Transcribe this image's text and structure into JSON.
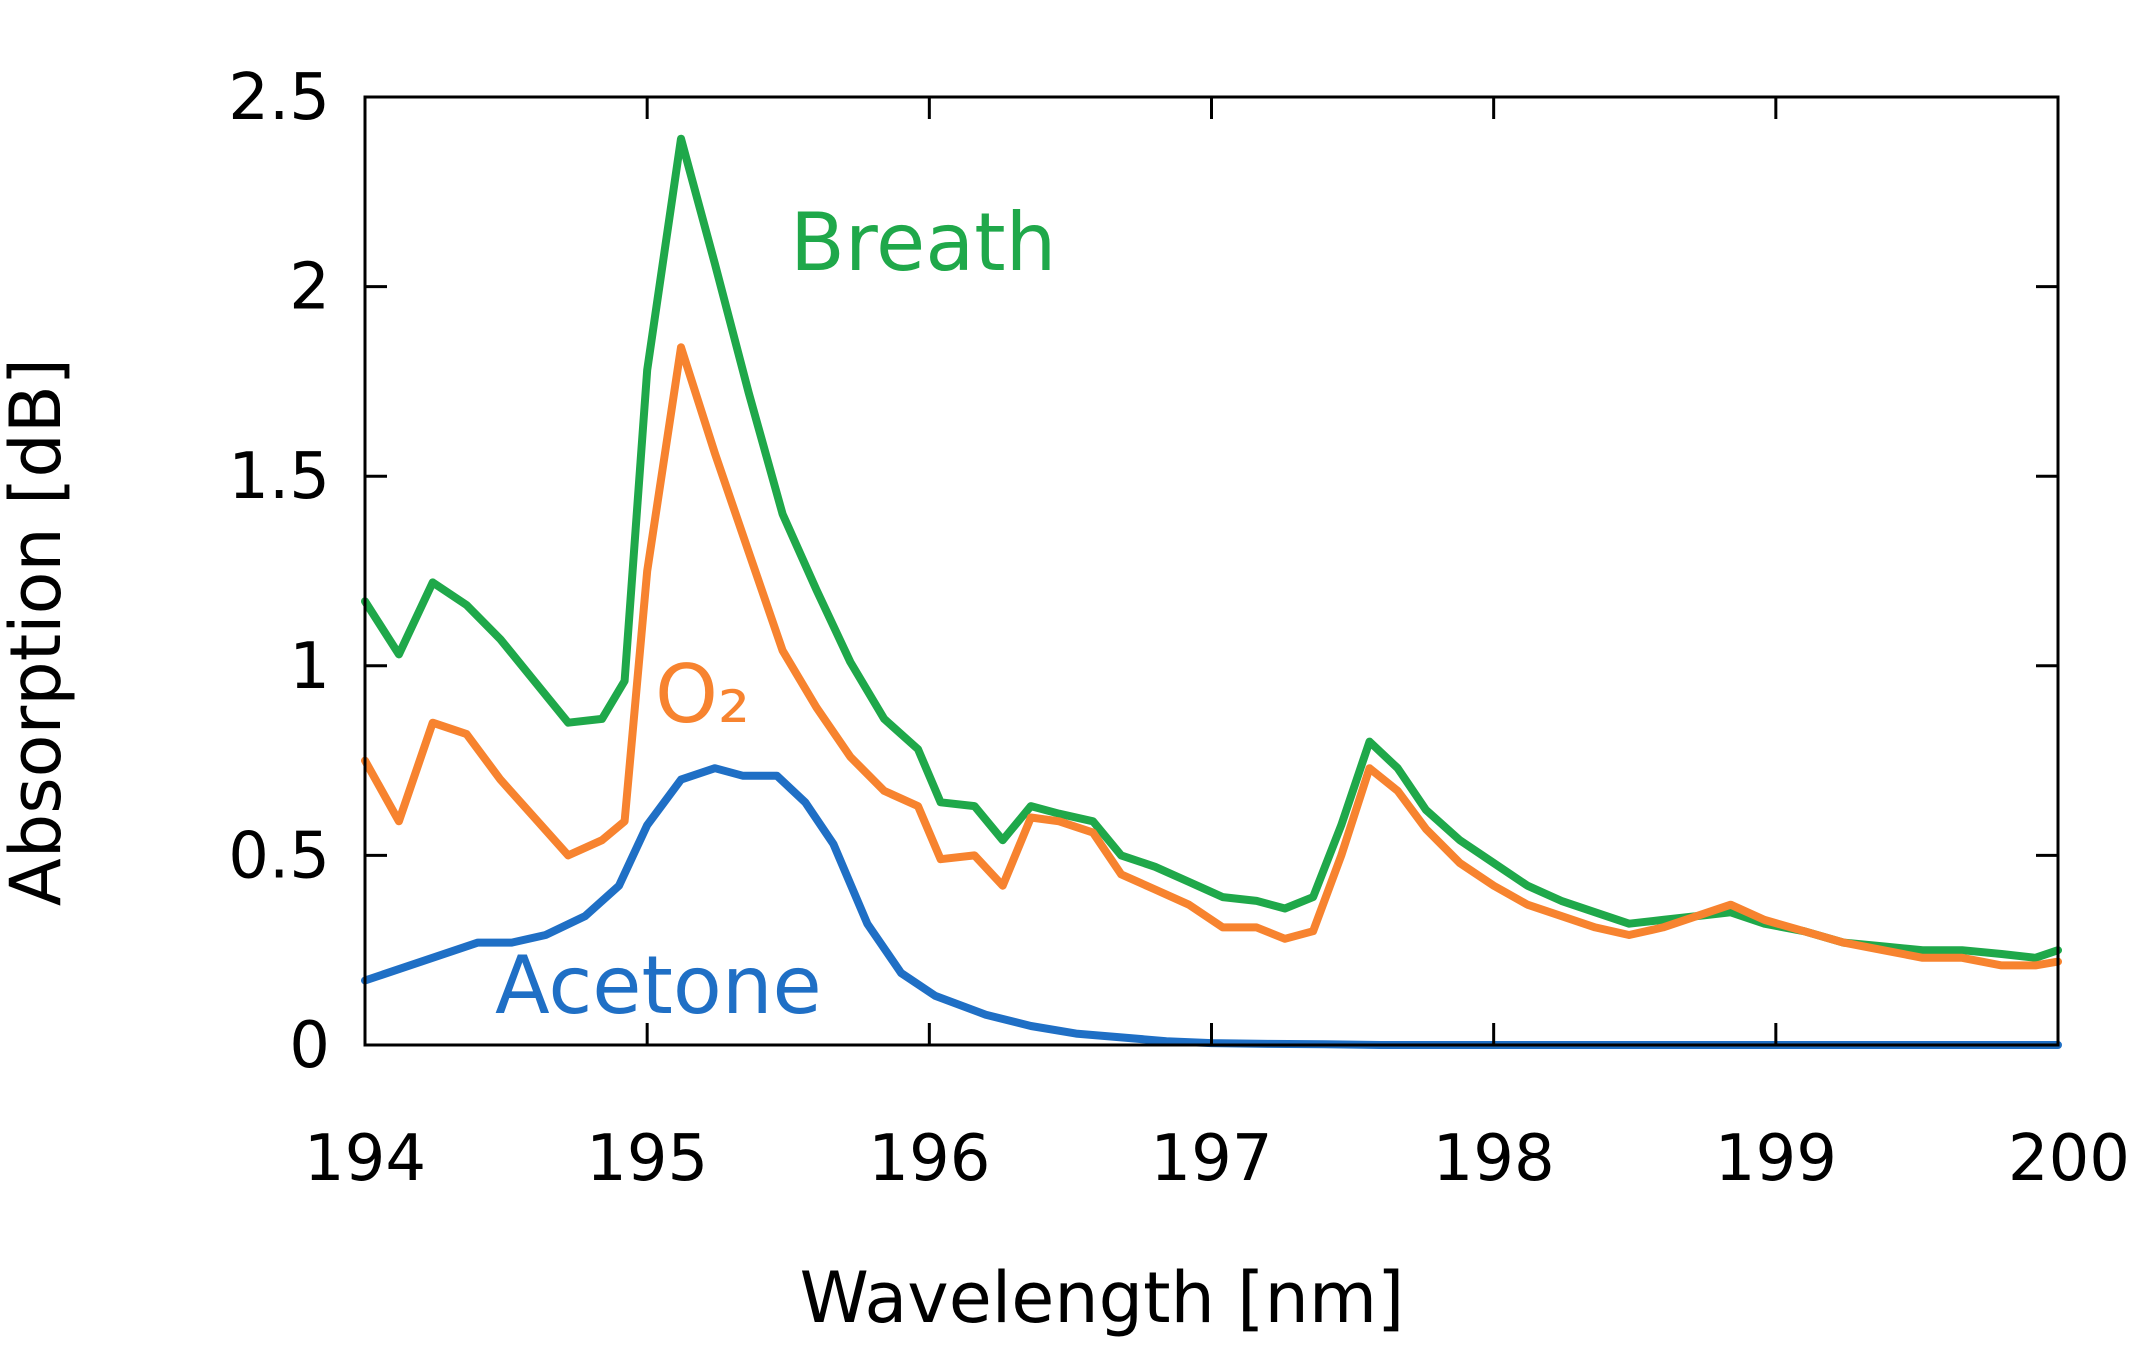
{
  "chart_data": {
    "type": "line",
    "title": "",
    "xlabel": "Wavelength [nm]",
    "ylabel": "Absorption [dB]",
    "xlim": [
      194,
      200
    ],
    "ylim": [
      0,
      2.5
    ],
    "xticks": [
      194,
      195,
      196,
      197,
      198,
      199,
      200
    ],
    "xtick_labels": [
      "194",
      "195",
      "196",
      "197",
      "198",
      "199",
      "200"
    ],
    "yticks": [
      0,
      0.5,
      1,
      1.5,
      2,
      2.5
    ],
    "ytick_labels": [
      "0",
      "0.5",
      "1",
      "1.5",
      "2",
      "2.5"
    ],
    "grid": false,
    "legend": "inline labels",
    "series": [
      {
        "name": "Breath",
        "label_text": "Breath",
        "color": "#1fa84a",
        "x": [
          194.0,
          194.12,
          194.24,
          194.36,
          194.48,
          194.6,
          194.72,
          194.84,
          194.92,
          195.0,
          195.12,
          195.24,
          195.36,
          195.48,
          195.6,
          195.72,
          195.84,
          195.96,
          196.04,
          196.16,
          196.26,
          196.36,
          196.46,
          196.58,
          196.68,
          196.8,
          196.92,
          197.04,
          197.16,
          197.26,
          197.36,
          197.46,
          197.56,
          197.66,
          197.76,
          197.88,
          198.0,
          198.12,
          198.24,
          198.36,
          198.48,
          198.6,
          198.72,
          198.84,
          198.96,
          199.1,
          199.24,
          199.38,
          199.52,
          199.66,
          199.8,
          199.92,
          200.0
        ],
        "y": [
          1.17,
          1.03,
          1.22,
          1.16,
          1.07,
          0.96,
          0.85,
          0.86,
          0.96,
          1.78,
          2.39,
          2.06,
          1.72,
          1.4,
          1.2,
          1.01,
          0.86,
          0.78,
          0.64,
          0.63,
          0.54,
          0.63,
          0.61,
          0.59,
          0.5,
          0.47,
          0.43,
          0.39,
          0.38,
          0.36,
          0.39,
          0.58,
          0.8,
          0.73,
          0.62,
          0.54,
          0.48,
          0.42,
          0.38,
          0.35,
          0.32,
          0.33,
          0.34,
          0.35,
          0.32,
          0.3,
          0.27,
          0.26,
          0.25,
          0.25,
          0.24,
          0.23,
          0.25
        ]
      },
      {
        "name": "O₂",
        "label_text": "O₂",
        "color": "#f7832f",
        "x": [
          194.0,
          194.12,
          194.24,
          194.36,
          194.48,
          194.6,
          194.72,
          194.84,
          194.92,
          195.0,
          195.12,
          195.24,
          195.36,
          195.48,
          195.6,
          195.72,
          195.84,
          195.96,
          196.04,
          196.16,
          196.26,
          196.36,
          196.46,
          196.58,
          196.68,
          196.8,
          196.92,
          197.04,
          197.16,
          197.26,
          197.36,
          197.46,
          197.56,
          197.66,
          197.76,
          197.88,
          198.0,
          198.12,
          198.24,
          198.36,
          198.48,
          198.6,
          198.72,
          198.84,
          198.96,
          199.1,
          199.24,
          199.38,
          199.52,
          199.66,
          199.8,
          199.92,
          200.0
        ],
        "y": [
          0.75,
          0.59,
          0.85,
          0.82,
          0.7,
          0.6,
          0.5,
          0.54,
          0.59,
          1.25,
          1.84,
          1.56,
          1.3,
          1.04,
          0.89,
          0.76,
          0.67,
          0.63,
          0.49,
          0.5,
          0.42,
          0.6,
          0.59,
          0.56,
          0.45,
          0.41,
          0.37,
          0.31,
          0.31,
          0.28,
          0.3,
          0.5,
          0.73,
          0.67,
          0.57,
          0.48,
          0.42,
          0.37,
          0.34,
          0.31,
          0.29,
          0.31,
          0.34,
          0.37,
          0.33,
          0.3,
          0.27,
          0.25,
          0.23,
          0.23,
          0.21,
          0.21,
          0.22
        ]
      },
      {
        "name": "Acetone",
        "label_text": "Acetone",
        "color": "#1f6fc5",
        "x": [
          194.0,
          194.2,
          194.4,
          194.52,
          194.64,
          194.78,
          194.9,
          195.0,
          195.12,
          195.24,
          195.34,
          195.46,
          195.56,
          195.66,
          195.78,
          195.9,
          196.02,
          196.2,
          196.36,
          196.52,
          196.68,
          196.84,
          197.0,
          197.2,
          197.4,
          197.6,
          198.0,
          198.5,
          199.0,
          199.5,
          200.0
        ],
        "y": [
          0.17,
          0.22,
          0.27,
          0.27,
          0.29,
          0.34,
          0.42,
          0.58,
          0.7,
          0.73,
          0.71,
          0.71,
          0.64,
          0.53,
          0.32,
          0.19,
          0.13,
          0.08,
          0.05,
          0.03,
          0.02,
          0.01,
          0.005,
          0.003,
          0.002,
          0.0,
          0.0,
          0.0,
          0.0,
          0.0,
          0.0
        ]
      }
    ]
  }
}
